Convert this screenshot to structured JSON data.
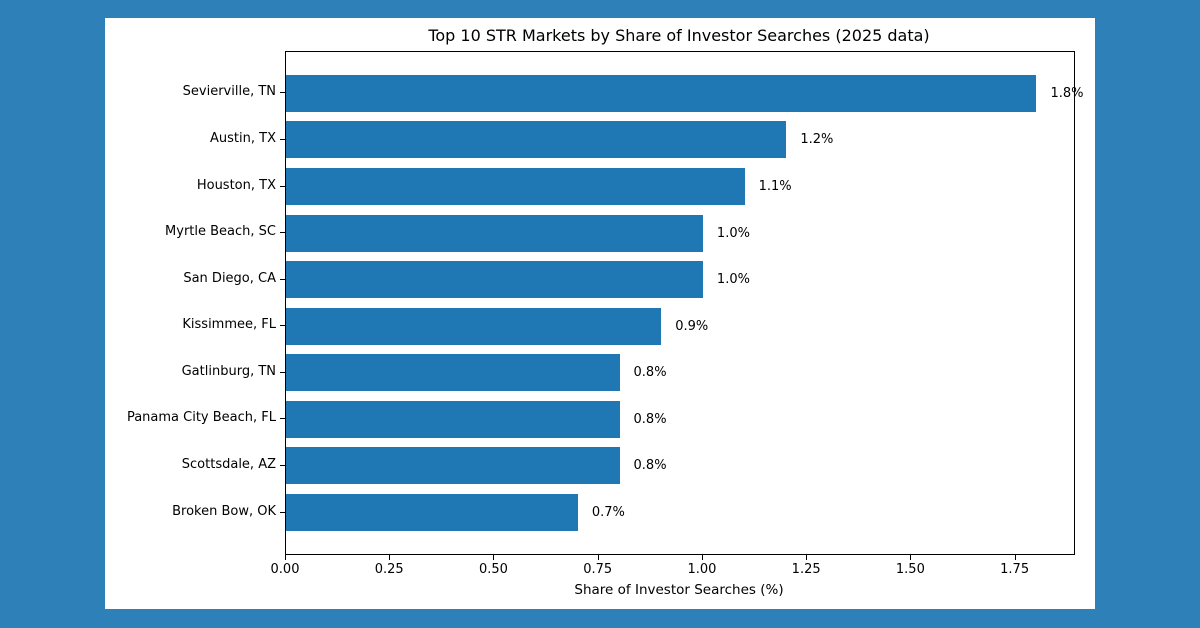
{
  "colors": {
    "figure_background": "#2E80B8",
    "card_background": "#FFFFFF",
    "bar_fill": "#1F77B4",
    "axis_line": "#000000",
    "text": "#000000"
  },
  "chart_data": {
    "type": "bar",
    "orientation": "horizontal",
    "title": "Top 10 STR Markets by Share of Investor Searches (2025 data)",
    "xlabel": "Share of Investor Searches (%)",
    "ylabel": "",
    "categories": [
      "Sevierville, TN",
      "Austin, TX",
      "Houston, TX",
      "Myrtle Beach, SC",
      "San Diego, CA",
      "Kissimmee, FL",
      "Gatlinburg, TN",
      "Panama City Beach, FL",
      "Scottsdale, AZ",
      "Broken Bow, OK"
    ],
    "values": [
      1.8,
      1.2,
      1.1,
      1.0,
      1.0,
      0.9,
      0.8,
      0.8,
      0.8,
      0.7
    ],
    "value_labels": [
      "1.8%",
      "1.2%",
      "1.1%",
      "1.0%",
      "1.0%",
      "0.9%",
      "0.8%",
      "0.8%",
      "0.8%",
      "0.7%"
    ],
    "xlim": [
      0,
      1.89
    ],
    "xticks": [
      0.0,
      0.25,
      0.5,
      0.75,
      1.0,
      1.25,
      1.5,
      1.75
    ],
    "xtick_labels": [
      "0.00",
      "0.25",
      "0.50",
      "0.75",
      "1.00",
      "1.25",
      "1.50",
      "1.75"
    ],
    "grid": false,
    "legend": null
  }
}
